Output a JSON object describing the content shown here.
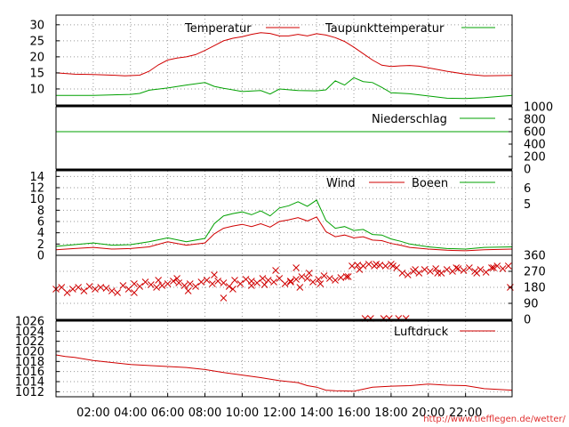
{
  "source_url": "http://www.tiefflegen.de/wetter/",
  "colors": {
    "red": "#d00000",
    "green": "#00a000",
    "grid": "#9a9a9a"
  },
  "x_axis": {
    "range_hours": [
      0,
      24.5
    ],
    "ticks": [
      2,
      4,
      6,
      8,
      10,
      12,
      14,
      16,
      18,
      20,
      22
    ],
    "tick_labels": [
      "02:00",
      "04:00",
      "06:00",
      "08:00",
      "10:00",
      "12:00",
      "14:00",
      "16:00",
      "18:00",
      "20:00",
      "22:00"
    ]
  },
  "chart_data": [
    {
      "type": "line",
      "panel": "temperature",
      "ylim": [
        5,
        33
      ],
      "yticks": [
        10,
        15,
        20,
        25,
        30
      ],
      "legend_placement": "top",
      "series": [
        {
          "name": "Temperatur",
          "color": "#d00000",
          "x": [
            0,
            1,
            2,
            3,
            3.7,
            4.5,
            5,
            5.5,
            6,
            6.5,
            7,
            7.5,
            8,
            8.5,
            9,
            9.5,
            10,
            10.5,
            11,
            11.5,
            12,
            12.5,
            13,
            13.5,
            14,
            14.5,
            15,
            15.5,
            16,
            16.5,
            17,
            17.5,
            18,
            18.5,
            19,
            19.5,
            20,
            21,
            22,
            23,
            24.5
          ],
          "y": [
            15,
            14.6,
            14.5,
            14.3,
            14.1,
            14.3,
            15.5,
            17.5,
            19,
            19.6,
            20,
            20.7,
            22,
            23.5,
            25,
            25.8,
            26.3,
            27,
            27.5,
            27.3,
            26.5,
            26.5,
            27,
            26.5,
            27.2,
            26.8,
            26,
            24.8,
            23,
            21,
            19,
            17.4,
            17,
            17.2,
            17.3,
            17.1,
            16.6,
            15.5,
            14.6,
            14.1,
            14.2
          ]
        },
        {
          "name": "Taupunkttemperatur",
          "color": "#00a000",
          "x": [
            0,
            2,
            4,
            4.5,
            5,
            6,
            7,
            8,
            8.5,
            9,
            10,
            11,
            11.5,
            12,
            13,
            14,
            14.5,
            15,
            15.5,
            16,
            16.5,
            17,
            17.5,
            18,
            19,
            20,
            21,
            22,
            23,
            24.5
          ],
          "y": [
            8,
            8,
            8.3,
            8.6,
            9.6,
            10.3,
            11.2,
            12,
            10.8,
            10.2,
            9.2,
            9.5,
            8.4,
            10,
            9.5,
            9.4,
            9.7,
            12.5,
            11.2,
            13.5,
            12.3,
            12,
            10.5,
            8.8,
            8.5,
            7.8,
            7.1,
            7,
            7.3,
            8
          ]
        }
      ]
    },
    {
      "type": "line",
      "panel": "precipitation",
      "ylim": [
        0,
        1000
      ],
      "yticks": [
        0,
        200,
        400,
        600,
        800,
        1000
      ],
      "yaxis_side": "right",
      "series": [
        {
          "name": "Niederschlag",
          "color": "#00a000",
          "x": [
            0,
            24.5
          ],
          "y": [
            600,
            600
          ]
        }
      ]
    },
    {
      "type": "line",
      "panel": "wind",
      "ylim": [
        0,
        15
      ],
      "yticks": [
        0,
        2,
        4,
        6,
        8,
        10,
        12,
        14
      ],
      "y2_labels": [
        "6",
        "5"
      ],
      "series": [
        {
          "name": "Wind",
          "color": "#d00000",
          "x": [
            0,
            1,
            2,
            3,
            4,
            5,
            6,
            7,
            8,
            8.5,
            9,
            9.5,
            10,
            10.5,
            11,
            11.5,
            12,
            12.5,
            13,
            13.5,
            14,
            14.5,
            15,
            15.5,
            16,
            16.5,
            17,
            17.5,
            18,
            18.5,
            19,
            20,
            21,
            22,
            23,
            24.5
          ],
          "y": [
            1,
            1.2,
            1.4,
            1.1,
            1.2,
            1.5,
            2.4,
            1.8,
            2.2,
            3.8,
            4.8,
            5.2,
            5.5,
            5.1,
            5.6,
            5.0,
            6.0,
            6.3,
            6.7,
            6.1,
            6.8,
            4.2,
            3.3,
            3.6,
            3.1,
            3.3,
            2.7,
            2.6,
            2.1,
            1.8,
            1.4,
            1.1,
            0.9,
            0.8,
            1.0,
            1.1
          ]
        },
        {
          "name": "Boeen",
          "color": "#00a000",
          "x": [
            0,
            1,
            2,
            3,
            4,
            5,
            6,
            7,
            8,
            8.5,
            9,
            9.5,
            10,
            10.5,
            11,
            11.5,
            12,
            12.5,
            13,
            13.5,
            14,
            14.5,
            15,
            15.5,
            16,
            16.5,
            17,
            17.5,
            18,
            18.5,
            19,
            20,
            21,
            22,
            23,
            24.5
          ],
          "y": [
            1.6,
            1.9,
            2.2,
            1.8,
            1.9,
            2.4,
            3.1,
            2.4,
            3.0,
            5.6,
            7.0,
            7.4,
            7.7,
            7.2,
            7.9,
            7.0,
            8.4,
            8.8,
            9.5,
            8.7,
            9.8,
            6.2,
            4.8,
            5.1,
            4.4,
            4.6,
            3.7,
            3.6,
            2.9,
            2.5,
            2.0,
            1.5,
            1.2,
            1.1,
            1.4,
            1.5
          ]
        }
      ]
    },
    {
      "type": "scatter",
      "panel": "wind_direction",
      "ylim": [
        0,
        360
      ],
      "yticks": [
        0,
        90,
        180,
        270,
        360
      ],
      "yaxis_side": "right",
      "marker": "x",
      "series": [
        {
          "color": "#d00000",
          "x": [
            0,
            0.3,
            0.6,
            0.9,
            1.2,
            1.5,
            1.8,
            2.1,
            2.4,
            2.7,
            3.0,
            3.3,
            3.6,
            3.9,
            4.2,
            4.5,
            4.8,
            5.1,
            5.4,
            5.7,
            6.0,
            6.3,
            6.6,
            6.9,
            7.2,
            7.5,
            7.8,
            8.1,
            8.4,
            8.7,
            9.0,
            9.3,
            9.6,
            9.9,
            10.2,
            10.5,
            10.8,
            11.1,
            11.4,
            11.7,
            12.0,
            12.3,
            12.6,
            12.9,
            13.2,
            13.5,
            13.8,
            14.1,
            14.4,
            14.7,
            15.0,
            15.3,
            15.6,
            15.9,
            16.2,
            16.5,
            16.8,
            17.1,
            17.4,
            17.7,
            18.0,
            18.3,
            18.6,
            18.9,
            19.2,
            19.5,
            19.8,
            20.1,
            20.4,
            20.7,
            21.0,
            21.3,
            21.6,
            21.9,
            22.2,
            22.5,
            22.8,
            23.1,
            23.4,
            23.7,
            24.0,
            24.3,
            5.5,
            6.5,
            8.5,
            9.5,
            10.5,
            11.2,
            12.6,
            13.1,
            14.2,
            15.7,
            16.3,
            17.2,
            18.1,
            19.3,
            20.5,
            21.5,
            22.6,
            23.5,
            4.2,
            7.1,
            9.0,
            13.6,
            11.8,
            12.9,
            16.6,
            17.6,
            18.4,
            18.8,
            16.9,
            17.9,
            24.4
          ],
          "y": [
            170,
            180,
            150,
            170,
            180,
            160,
            185,
            170,
            180,
            175,
            160,
            150,
            190,
            170,
            200,
            185,
            210,
            195,
            180,
            190,
            200,
            215,
            205,
            190,
            200,
            185,
            210,
            220,
            200,
            215,
            205,
            185,
            220,
            200,
            225,
            215,
            205,
            230,
            220,
            210,
            230,
            200,
            215,
            225,
            240,
            230,
            210,
            225,
            245,
            230,
            220,
            235,
            240,
            300,
            305,
            300,
            310,
            300,
            305,
            300,
            310,
            290,
            260,
            250,
            270,
            260,
            280,
            270,
            285,
            260,
            280,
            270,
            285,
            275,
            290,
            270,
            280,
            265,
            290,
            300,
            285,
            300,
            220,
            230,
            250,
            170,
            190,
            195,
            210,
            180,
            200,
            240,
            280,
            310,
            300,
            280,
            260,
            290,
            260,
            290,
            150,
            160,
            120,
            260,
            275,
            290,
            5,
            5,
            5,
            5,
            5,
            5,
            180
          ]
        }
      ]
    },
    {
      "type": "line",
      "panel": "pressure",
      "ylim": [
        1011,
        1026
      ],
      "yticks": [
        1012,
        1014,
        1016,
        1018,
        1020,
        1022,
        1024,
        1026
      ],
      "legend_placement": "top-right",
      "series": [
        {
          "name": "Luftdruck",
          "color": "#d00000",
          "x": [
            0,
            0.5,
            1,
            2,
            3,
            4,
            5,
            6,
            7,
            8,
            9,
            10,
            11,
            12,
            13,
            13.5,
            14,
            14.5,
            15,
            16,
            16.5,
            17,
            18,
            19,
            20,
            21,
            22,
            23,
            24.5
          ],
          "y": [
            1019.3,
            1019,
            1018.8,
            1018.2,
            1017.8,
            1017.4,
            1017.2,
            1017.0,
            1016.8,
            1016.4,
            1015.8,
            1015.3,
            1014.8,
            1014.2,
            1013.8,
            1013.2,
            1012.9,
            1012.3,
            1012.2,
            1012.1,
            1012.5,
            1012.9,
            1013.1,
            1013.2,
            1013.5,
            1013.3,
            1013.2,
            1012.6,
            1012.3
          ]
        }
      ]
    }
  ]
}
